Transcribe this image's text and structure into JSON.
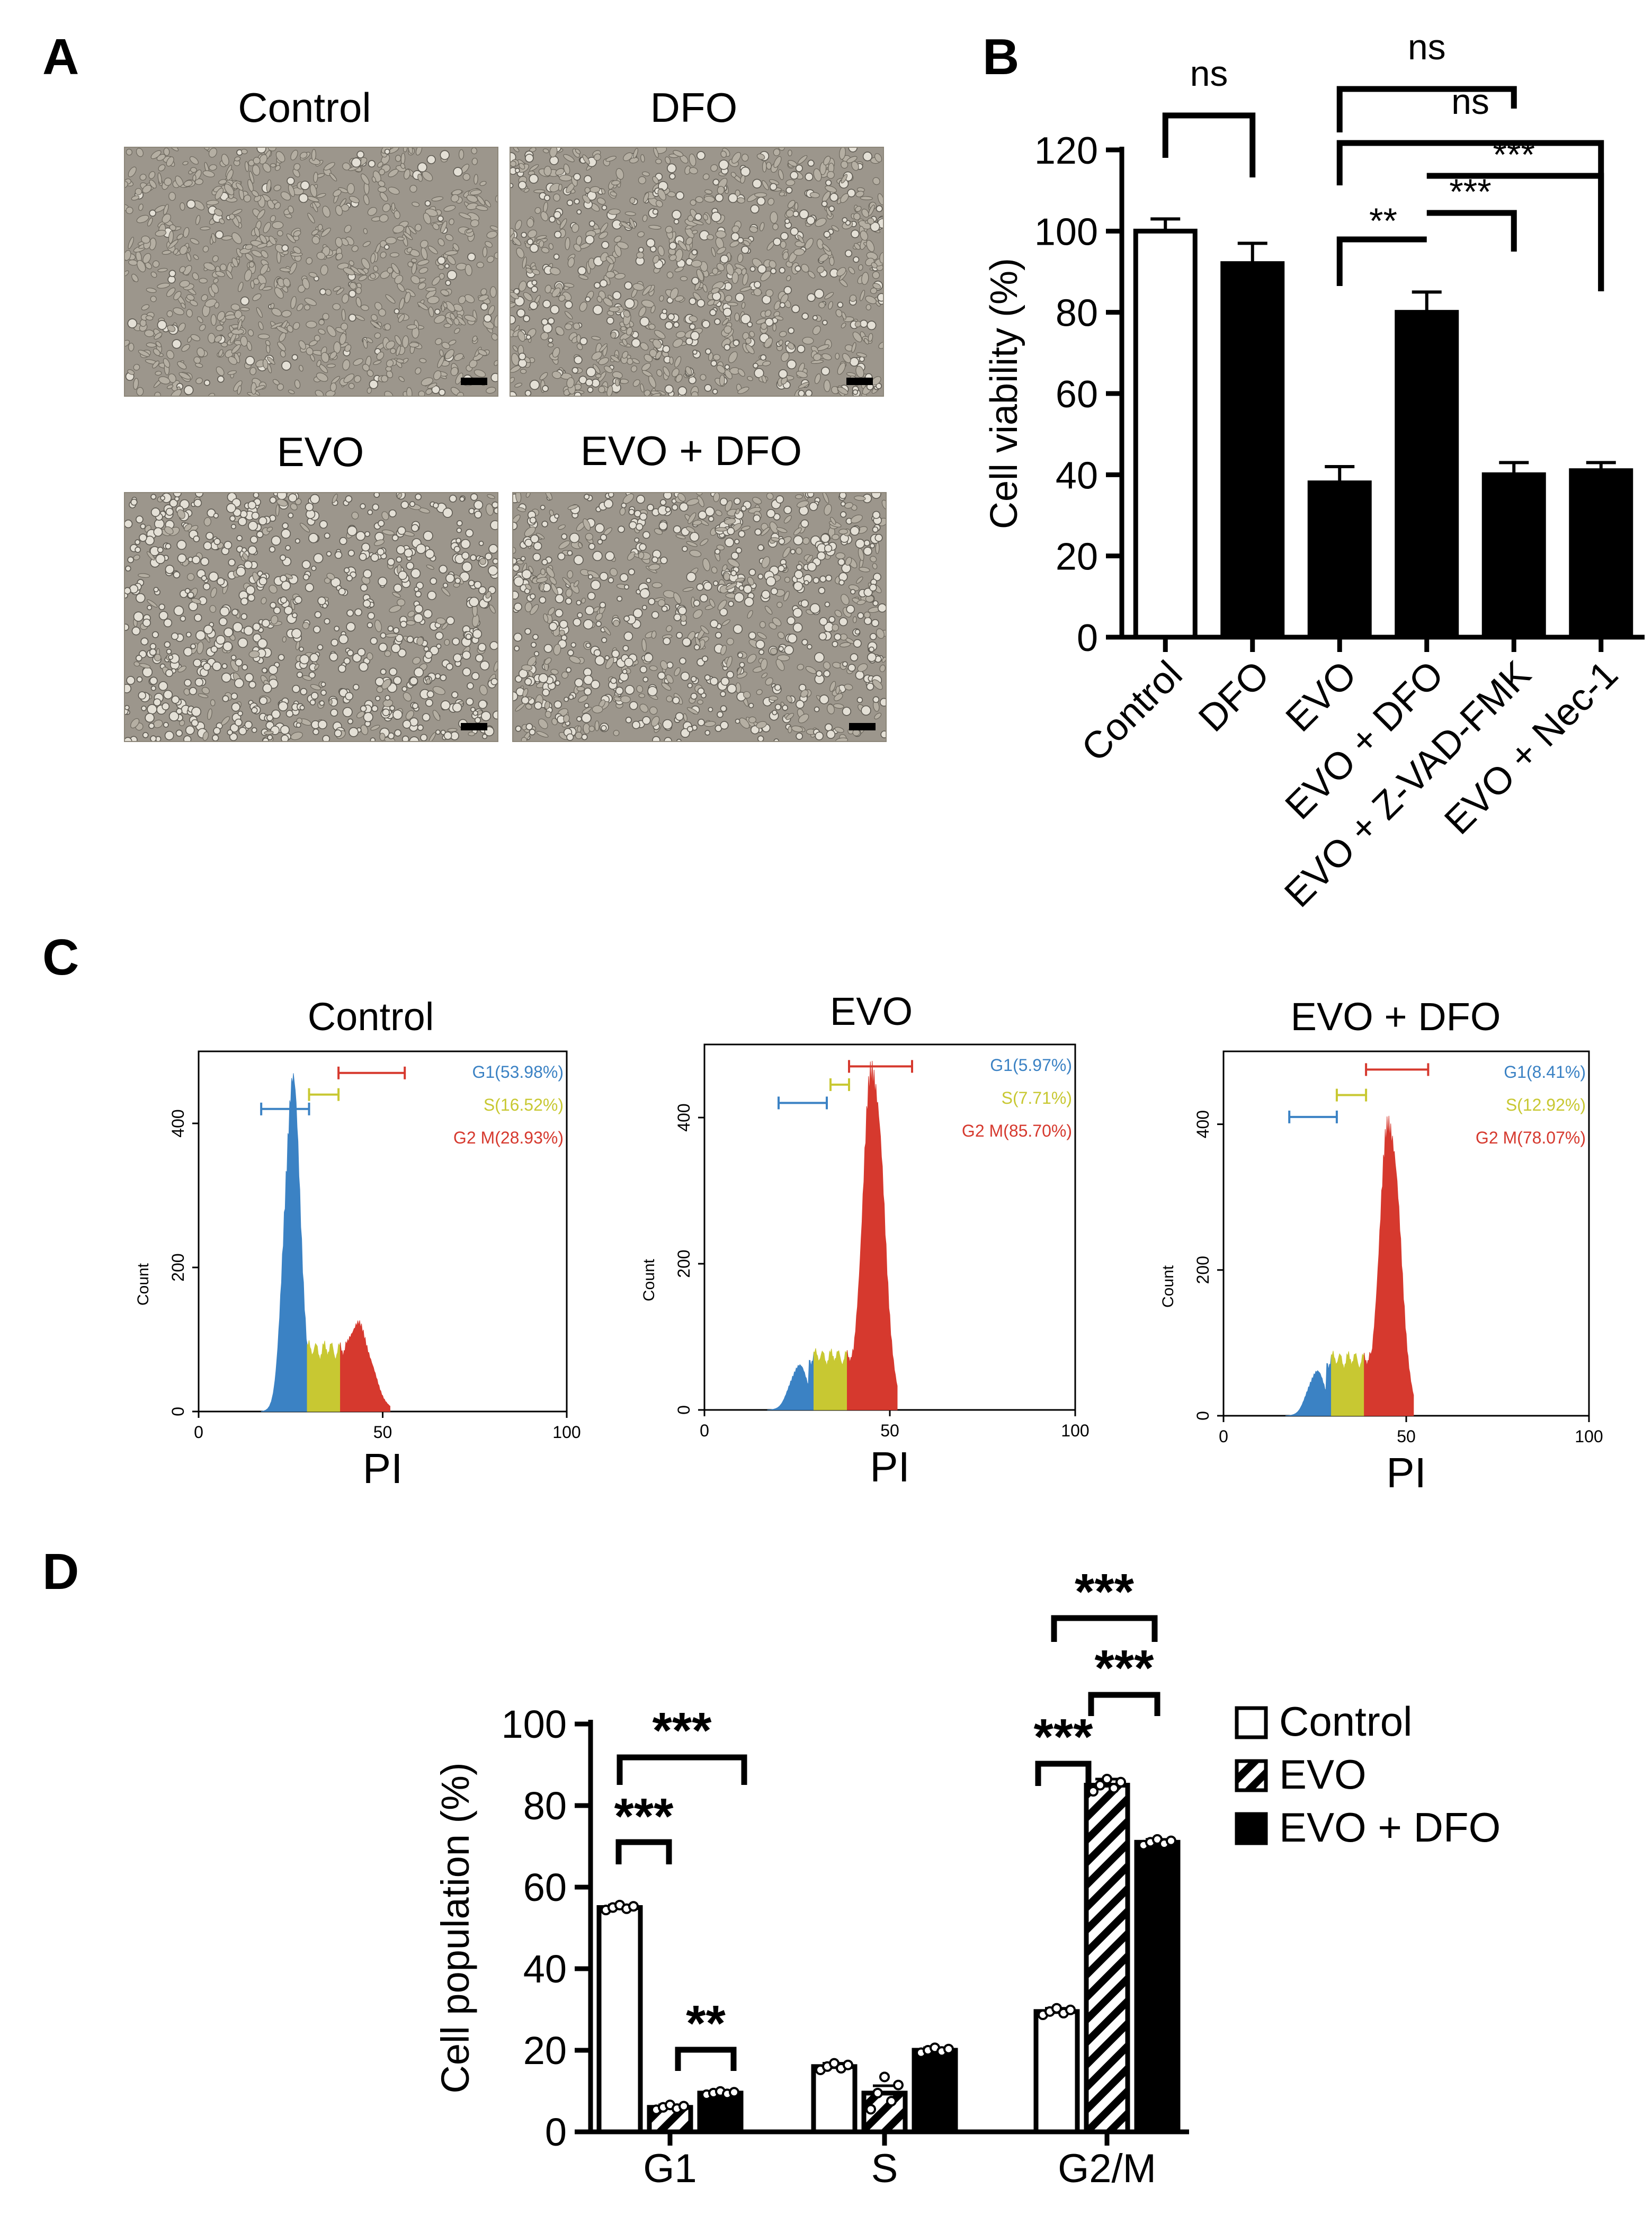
{
  "panels": {
    "A": {
      "letter": "A",
      "images": [
        {
          "label": "Control"
        },
        {
          "label": "DFO"
        },
        {
          "label": "EVO"
        },
        {
          "label": "EVO + DFO"
        }
      ]
    },
    "B": {
      "letter": "B"
    },
    "C": {
      "letter": "C"
    },
    "D": {
      "letter": "D"
    }
  },
  "colors": {
    "g1": "#3b82c4",
    "s": "#c8c832",
    "g2m": "#d6392e",
    "bar": "#000000",
    "background": "#ffffff"
  },
  "chart_data": [
    {
      "id": "B",
      "type": "bar",
      "ylabel": "Cell viability (%)",
      "ylim": [
        0,
        120
      ],
      "yticks": [
        0,
        20,
        40,
        60,
        80,
        100,
        120
      ],
      "categories": [
        "Control",
        "DFO",
        "EVO",
        "EVO + DFO",
        "EVO + Z-VAD-FMK",
        "EVO + Nec-1"
      ],
      "values": [
        100,
        92,
        38,
        80,
        40,
        41
      ],
      "errors": [
        3,
        5,
        4,
        5,
        3,
        2
      ],
      "fills": [
        "white",
        "black",
        "black",
        "black",
        "black",
        "black"
      ],
      "significance": [
        {
          "from": 0,
          "to": 1,
          "label": "ns"
        },
        {
          "from": 2,
          "to": 4,
          "label": "ns"
        },
        {
          "from": 2,
          "to": 5,
          "label": "ns"
        },
        {
          "from": 2,
          "to": 3,
          "label": "**"
        },
        {
          "from": 3,
          "to": 4,
          "label": "***"
        },
        {
          "from": 3,
          "to": 5,
          "label": "***"
        }
      ]
    },
    {
      "id": "C",
      "type": "histogram",
      "xlabel": "PI",
      "ylabel": "Count",
      "xlim": [
        0,
        100
      ],
      "xticks": [
        0,
        50,
        100
      ],
      "ylim": [
        0,
        500
      ],
      "yticks": [
        0,
        200,
        400
      ],
      "histograms": [
        {
          "title": "Control",
          "g1": "G1(53.98%)",
          "s": "S(16.52%)",
          "g2m": "G2 M(28.93%)",
          "peaks": {
            "g1_height": 455,
            "s_height": 95,
            "g2m_height": 120
          }
        },
        {
          "title": "EVO",
          "g1": "G1(5.97%)",
          "s": "S(7.71%)",
          "g2m": "G2 M(85.70%)",
          "peaks": {
            "g1_height": 60,
            "s_height": 90,
            "g2m_height": 470
          }
        },
        {
          "title": "EVO + DFO",
          "g1": "G1(8.41%)",
          "s": "S(12.92%)",
          "g2m": "G2 M(78.07%)",
          "peaks": {
            "g1_height": 60,
            "s_height": 95,
            "g2m_height": 405
          }
        }
      ]
    },
    {
      "id": "D",
      "type": "bar",
      "ylabel": "Cell population (%)",
      "ylim": [
        0,
        100
      ],
      "yticks": [
        0,
        20,
        40,
        60,
        80,
        100
      ],
      "categories": [
        "G1",
        "S",
        "G2/M"
      ],
      "series": [
        {
          "name": "Control",
          "style": "white",
          "values": [
            55,
            16,
            29.5
          ],
          "errors": [
            0.6,
            0.8,
            0.8
          ]
        },
        {
          "name": "EVO",
          "style": "hatched",
          "values": [
            6,
            9.5,
            85
          ],
          "errors": [
            0.6,
            1.8,
            1.5
          ]
        },
        {
          "name": "EVO + DFO",
          "style": "black",
          "values": [
            9.5,
            20,
            71
          ],
          "errors": [
            0.4,
            0.6,
            0.7
          ]
        }
      ],
      "significance": [
        {
          "group": 0,
          "from": 0,
          "to": 1,
          "label": "***"
        },
        {
          "group": 0,
          "from": 0,
          "to": 2,
          "label": "***"
        },
        {
          "group": 0,
          "from": 1,
          "to": 2,
          "label": "**"
        },
        {
          "group": 2,
          "from": 0,
          "to": 1,
          "label": "***"
        },
        {
          "group": 2,
          "from": 0,
          "to": 2,
          "label": "***"
        },
        {
          "group": 2,
          "from": 1,
          "to": 2,
          "label": "***"
        }
      ]
    }
  ]
}
